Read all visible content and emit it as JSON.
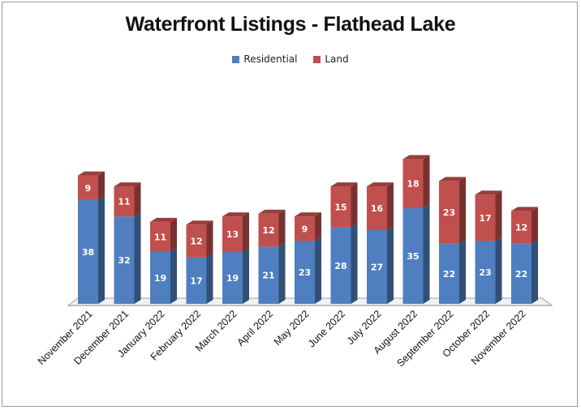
{
  "chart_data": {
    "type": "bar",
    "stacked": true,
    "three_d": true,
    "title": "Waterfront Listings - Flathead Lake",
    "xlabel": "",
    "ylabel": "",
    "ylim": [
      0,
      60
    ],
    "grid": false,
    "legend_position": "top",
    "categories": [
      "November 2021",
      "December 2021",
      "January 2022",
      "February 2022",
      "March 2022",
      "April 2022",
      "May 2022",
      "June 2022",
      "July 2022",
      "August 2022",
      "September 2022",
      "October 2022",
      "November 2022"
    ],
    "series": [
      {
        "name": "Residential",
        "color": "#4f7fc0",
        "values": [
          38,
          32,
          19,
          17,
          19,
          21,
          23,
          28,
          27,
          35,
          22,
          23,
          22
        ]
      },
      {
        "name": "Land",
        "color": "#c0504d",
        "values": [
          9,
          11,
          11,
          12,
          13,
          12,
          9,
          15,
          16,
          18,
          23,
          17,
          12
        ]
      }
    ]
  }
}
